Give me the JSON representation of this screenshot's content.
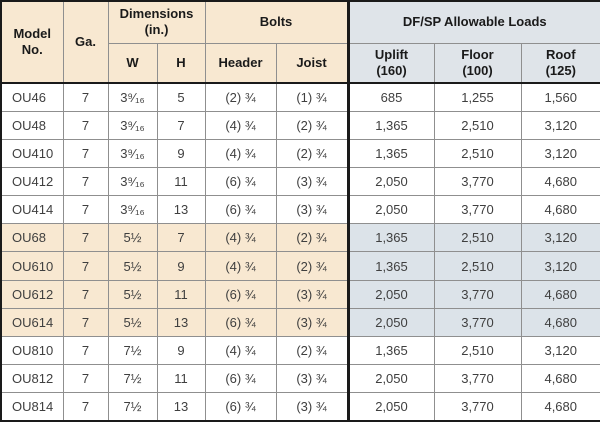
{
  "colors": {
    "cream": "#f8e8d1",
    "bluegray": "#dfe4e9",
    "hl_loads": "#dce3e9",
    "grid": "#8f8f8f",
    "frame": "#1a1a1a"
  },
  "header": {
    "model": "Model\nNo.",
    "ga": "Ga.",
    "dimensions": "Dimensions\n(in.)",
    "bolts": "Bolts",
    "loads": "DF/SP Allowable Loads",
    "w": "W",
    "h": "H",
    "bolts_header": "Header",
    "bolts_joist": "Joist",
    "uplift": "Uplift\n(160)",
    "floor": "Floor\n(100)",
    "roof": "Roof\n(125)"
  },
  "rows": [
    {
      "model": "OU46",
      "ga": "7",
      "w": "3⁹⁄₁₆",
      "h": "5",
      "header_bolts": "(2) ¾",
      "joist_bolts": "(1) ¾",
      "uplift": "685",
      "floor": "1,255",
      "roof": "1,560",
      "highlight": false
    },
    {
      "model": "OU48",
      "ga": "7",
      "w": "3⁹⁄₁₆",
      "h": "7",
      "header_bolts": "(4) ¾",
      "joist_bolts": "(2) ¾",
      "uplift": "1,365",
      "floor": "2,510",
      "roof": "3,120",
      "highlight": false
    },
    {
      "model": "OU410",
      "ga": "7",
      "w": "3⁹⁄₁₆",
      "h": "9",
      "header_bolts": "(4) ¾",
      "joist_bolts": "(2) ¾",
      "uplift": "1,365",
      "floor": "2,510",
      "roof": "3,120",
      "highlight": false
    },
    {
      "model": "OU412",
      "ga": "7",
      "w": "3⁹⁄₁₆",
      "h": "11",
      "header_bolts": "(6) ¾",
      "joist_bolts": "(3) ¾",
      "uplift": "2,050",
      "floor": "3,770",
      "roof": "4,680",
      "highlight": false
    },
    {
      "model": "OU414",
      "ga": "7",
      "w": "3⁹⁄₁₆",
      "h": "13",
      "header_bolts": "(6) ¾",
      "joist_bolts": "(3) ¾",
      "uplift": "2,050",
      "floor": "3,770",
      "roof": "4,680",
      "highlight": false
    },
    {
      "model": "OU68",
      "ga": "7",
      "w": "5½",
      "h": "7",
      "header_bolts": "(4) ¾",
      "joist_bolts": "(2) ¾",
      "uplift": "1,365",
      "floor": "2,510",
      "roof": "3,120",
      "highlight": true
    },
    {
      "model": "OU610",
      "ga": "7",
      "w": "5½",
      "h": "9",
      "header_bolts": "(4) ¾",
      "joist_bolts": "(2) ¾",
      "uplift": "1,365",
      "floor": "2,510",
      "roof": "3,120",
      "highlight": true
    },
    {
      "model": "OU612",
      "ga": "7",
      "w": "5½",
      "h": "11",
      "header_bolts": "(6) ¾",
      "joist_bolts": "(3) ¾",
      "uplift": "2,050",
      "floor": "3,770",
      "roof": "4,680",
      "highlight": true
    },
    {
      "model": "OU614",
      "ga": "7",
      "w": "5½",
      "h": "13",
      "header_bolts": "(6) ¾",
      "joist_bolts": "(3) ¾",
      "uplift": "2,050",
      "floor": "3,770",
      "roof": "4,680",
      "highlight": true
    },
    {
      "model": "OU810",
      "ga": "7",
      "w": "7½",
      "h": "9",
      "header_bolts": "(4) ¾",
      "joist_bolts": "(2) ¾",
      "uplift": "1,365",
      "floor": "2,510",
      "roof": "3,120",
      "highlight": false
    },
    {
      "model": "OU812",
      "ga": "7",
      "w": "7½",
      "h": "11",
      "header_bolts": "(6) ¾",
      "joist_bolts": "(3) ¾",
      "uplift": "2,050",
      "floor": "3,770",
      "roof": "4,680",
      "highlight": false
    },
    {
      "model": "OU814",
      "ga": "7",
      "w": "7½",
      "h": "13",
      "header_bolts": "(6) ¾",
      "joist_bolts": "(3) ¾",
      "uplift": "2,050",
      "floor": "3,770",
      "roof": "4,680",
      "highlight": false
    }
  ]
}
